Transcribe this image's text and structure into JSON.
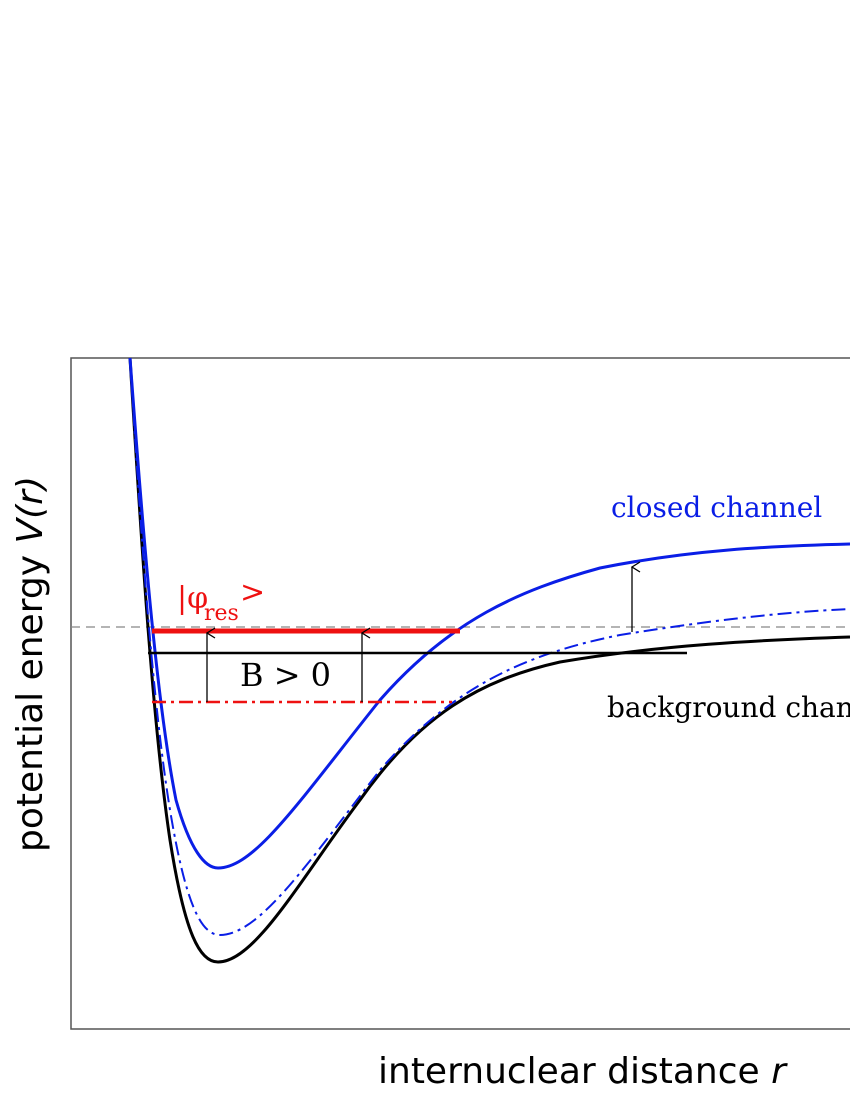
{
  "axes": {
    "ylabel_text": "potential energy ",
    "ylabel_var": "V(r)",
    "xlabel_text": "internuclear distance ",
    "xlabel_var": "r"
  },
  "labels": {
    "closed_channel": "closed channel",
    "background_channel": "background chann",
    "resonance_prefix": "|φ",
    "resonance_sub": "res",
    "resonance_suffix": ">",
    "field_condition": "B > 0"
  },
  "colors": {
    "closed_channel": "#0a1ee6",
    "background_channel": "#000000",
    "resonance_state": "#ee1111",
    "threshold_line": "#888888",
    "frame": "#555555"
  }
}
